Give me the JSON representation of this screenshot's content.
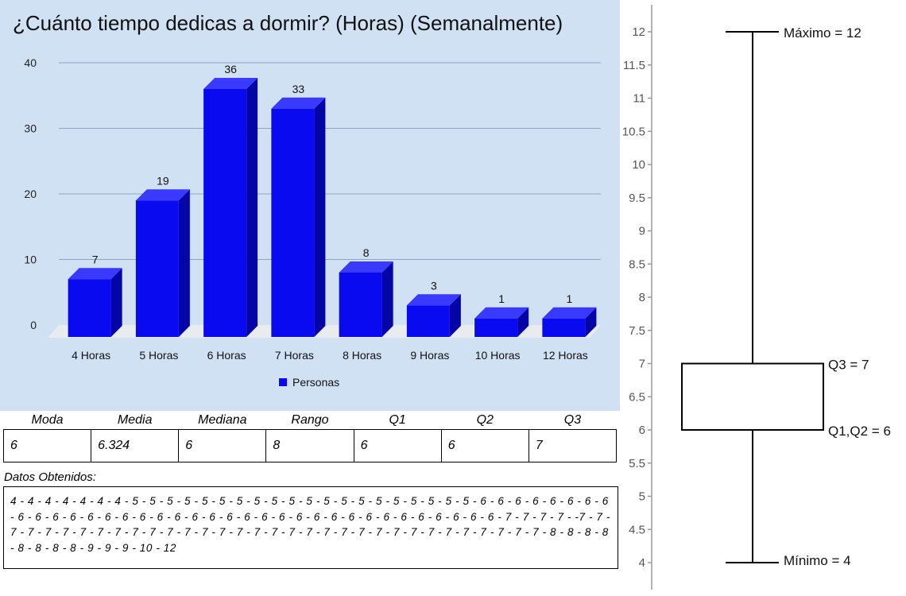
{
  "chart_data": [
    {
      "type": "bar",
      "title": "¿Cuánto tiempo dedicas a dormir? (Horas) (Semanalmente)",
      "categories": [
        "4 Horas",
        "5 Horas",
        "6 Horas",
        "7 Horas",
        "8 Horas",
        "9 Horas",
        "10 Horas",
        "12 Horas"
      ],
      "series": [
        {
          "name": "Personas",
          "values": [
            7,
            19,
            36,
            33,
            8,
            3,
            1,
            1
          ]
        }
      ],
      "ylim": [
        0,
        40
      ],
      "yticks": [
        "0",
        "10",
        "20",
        "30",
        "40"
      ],
      "grid": true,
      "legend": "bottom",
      "bar_color": "#0a0af0"
    },
    {
      "type": "boxplot",
      "ylim": [
        4,
        12
      ],
      "yticks": [
        "4",
        "4.5",
        "5",
        "5.5",
        "6",
        "6.5",
        "7",
        "7.5",
        "8",
        "8.5",
        "9",
        "9.5",
        "10",
        "10.5",
        "11",
        "11.5",
        "12"
      ],
      "min": 4,
      "q1": 6,
      "median": 6,
      "q3": 7,
      "max": 12,
      "labels": {
        "max": "Máximo = 12",
        "q3": "Q3 = 7",
        "q1q2": "Q1,Q2 = 6",
        "min": "Mínimo = 4"
      }
    }
  ],
  "stats": {
    "headers": [
      "Moda",
      "Media",
      "Mediana",
      "Rango",
      "Q1",
      "Q2",
      "Q3"
    ],
    "values": [
      "6",
      "6.324",
      "6",
      "8",
      "6",
      "6",
      "7"
    ]
  },
  "raw": {
    "caption": "Datos Obtenidos:",
    "text": "4 - 4 - 4 - 4 - 4 - 4 - 4 - 5 - 5 - 5 - 5 - 5 - 5 - 5 - 5 - 5 - 5 - 5 - 5 - 5 - 5 - 5 - 5 - 5 - 5 - 5 - 5 - 6 - 6 - 6 - 6 - 6 - 6 - 6 - 6 - 6 - 6 - 6 - 6 - 6 - 6 - 6 - 6 - 6 - 6 - 6 - 6 - 6 - 6 - 6 - 6 - 6 - 6 - 6 - 6 - 6 - 6 - 6 - 6 - 6 - 6 - 6 - 6 -  7 - 7 - 7 - 7 - -7 - 7 - 7 - 7 - 7 - 7 - 7 - 7 - 7 - 7 - 7 - 7 - 7 - 7 - 7 - 7 - 7 - 7 - 7 - 7 - 7 - 7 - 7 - 7 - 7 - 7 - 7 - 7 - 7 - 7 - 7 - 7 - 7 - 8 - 8 - 8 - 8 - 8 - 8 - 8 - 8 - 9 - 9 - 9 - 10 - 12"
  }
}
